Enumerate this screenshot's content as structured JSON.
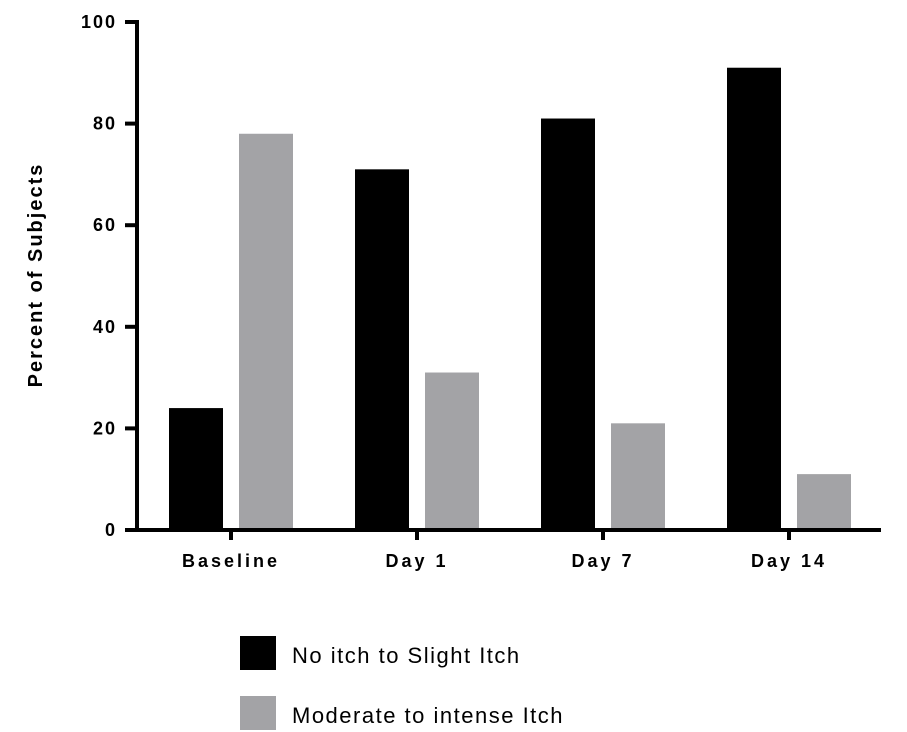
{
  "chart_data": {
    "type": "bar",
    "title": "",
    "xlabel": "",
    "ylabel": "Percent of Subjects",
    "ylim": [
      0,
      100
    ],
    "yticks": [
      0,
      20,
      40,
      60,
      80,
      100
    ],
    "categories": [
      "Baseline",
      "Day 1",
      "Day 7",
      "Day 14"
    ],
    "series": [
      {
        "name": "No itch to Slight Itch",
        "color": "#000000",
        "values": [
          24,
          71,
          81,
          91
        ]
      },
      {
        "name": "Moderate to intense Itch",
        "color": "#a3a3a6",
        "values": [
          78,
          31,
          21,
          11
        ]
      }
    ],
    "grid": false,
    "legend": "bottom"
  }
}
